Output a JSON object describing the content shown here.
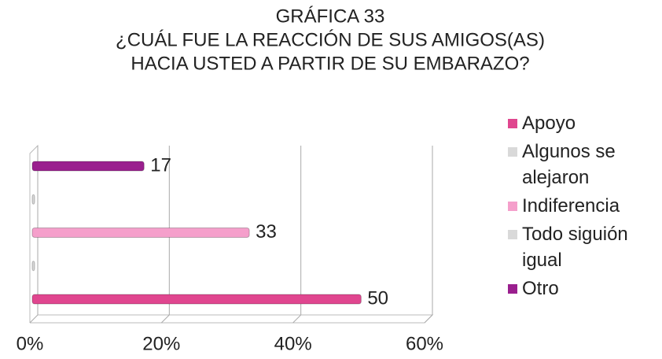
{
  "chart_data": {
    "type": "bar",
    "orientation": "horizontal",
    "title": [
      "GRÁFICA 33",
      "¿CUÁL FUE LA REACCIÓN DE SUS AMIGOS(AS)",
      "HACIA USTED A PARTIR DE SU EMBARAZO?"
    ],
    "categories": [
      "Apoyo",
      "Algunos se alejaron",
      "Indiferencia",
      "Todo siguión igual",
      "Otro"
    ],
    "values": [
      50,
      0,
      33,
      0,
      17
    ],
    "value_labels": [
      "50",
      null,
      "33",
      null,
      "17"
    ],
    "colors": [
      "#e0468f",
      "#d9d9d9",
      "#f59fcb",
      "#d9d9d9",
      "#9a1f8e"
    ],
    "xlim": [
      0,
      60
    ],
    "xticks": [
      {
        "value": 0,
        "label": "0%"
      },
      {
        "value": 20,
        "label": "20%"
      },
      {
        "value": 40,
        "label": "40%"
      },
      {
        "value": 60,
        "label": "60%"
      }
    ],
    "grid": true,
    "legend": "right"
  }
}
